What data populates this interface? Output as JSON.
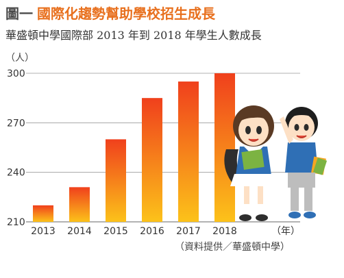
{
  "figure": {
    "number": "圖一",
    "title": "國際化趨勢幫助學校招生成長",
    "subtitle": "華盛頓中學國際部 2013 年到 2018 年學生人數成長",
    "source": "（資料提供／華盛頓中學）"
  },
  "colors": {
    "bar_top": "#f0401c",
    "bar_bottom": "#fcc21a",
    "grid": "#999999",
    "title_accent": "#e8701e"
  },
  "chart_data": {
    "type": "bar",
    "title": "華盛頓中學國際部 2013 年到 2018 年學生人數成長",
    "ylabel": "（人）",
    "xlabel": "（年）",
    "categories": [
      "2013",
      "2014",
      "2015",
      "2016",
      "2017",
      "2018"
    ],
    "values": [
      220,
      231,
      260,
      285,
      295,
      300
    ],
    "ylim": [
      210,
      300
    ],
    "yticks": [
      "210",
      "240",
      "270",
      "300"
    ],
    "grid": true,
    "legend": "none"
  },
  "illustration": {
    "description_icon": "two-students-icon"
  }
}
